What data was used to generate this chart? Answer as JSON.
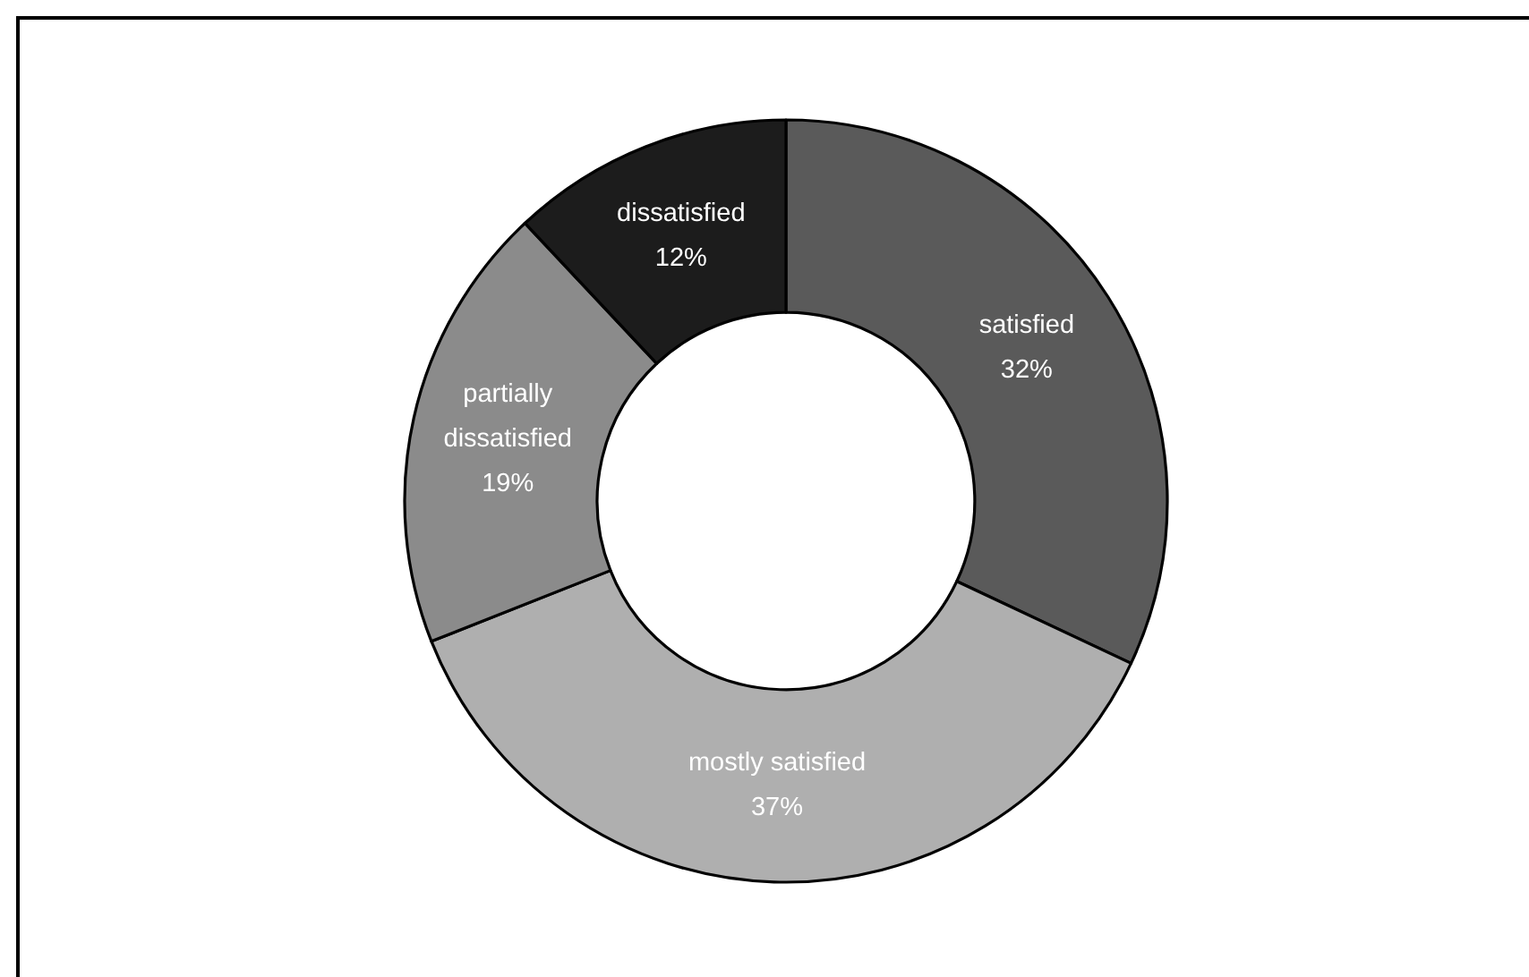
{
  "chart_data": {
    "type": "donut",
    "categories": [
      "satisfied",
      "mostly satisfied",
      "partially dissatisfied",
      "dissatisfied"
    ],
    "values": [
      32,
      37,
      19,
      12
    ],
    "value_labels": [
      "32%",
      "37%",
      "19%",
      "12%"
    ],
    "colors": [
      "#5a5a5a",
      "#afafaf",
      "#8b8b8b",
      "#1c1c1c"
    ]
  }
}
